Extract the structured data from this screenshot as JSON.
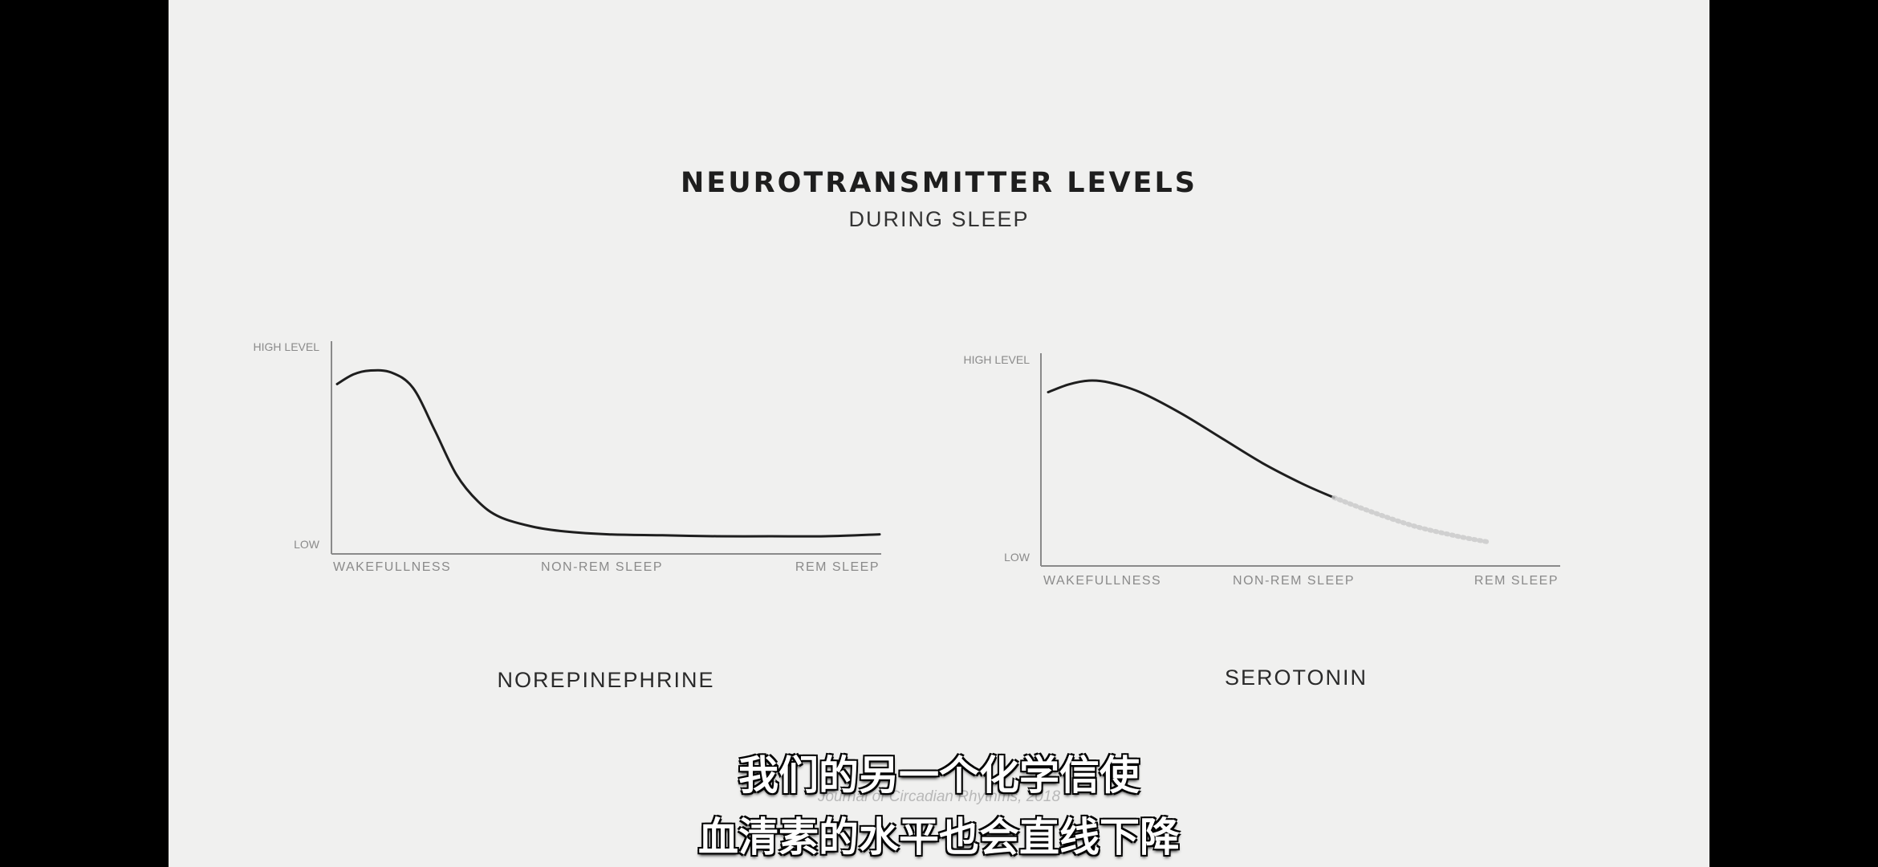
{
  "title": "NEUROTRANSMITTER LEVELS",
  "subtitle": "DURING SLEEP",
  "citation": "Journal of Circadian Rhythms, 2018",
  "captions": {
    "line1": "我们的另一个化学信使",
    "line2": "血清素的水平也会直线下降"
  },
  "chart_data": [
    {
      "type": "line",
      "title": "NOREPINEPHRINE",
      "ylabel_high": "HIGH LEVEL",
      "ylabel_low": "LOW",
      "x_ticks": [
        "WAKEFULLNESS",
        "NON-REM SLEEP",
        "REM SLEEP"
      ],
      "x": [
        0,
        0.03,
        0.06,
        0.1,
        0.14,
        0.18,
        0.22,
        0.26,
        0.3,
        0.36,
        0.42,
        0.5,
        0.6,
        0.7,
        0.8,
        0.9,
        1.0
      ],
      "y": [
        0.84,
        0.89,
        0.91,
        0.9,
        0.82,
        0.6,
        0.37,
        0.23,
        0.15,
        0.1,
        0.075,
        0.06,
        0.055,
        0.05,
        0.05,
        0.05,
        0.06
      ],
      "ylim": [
        0,
        1
      ],
      "grid": false
    },
    {
      "type": "line",
      "title": "SEROTONIN",
      "ylabel_high": "HIGH LEVEL",
      "ylabel_low": "LOW",
      "x_ticks": [
        "WAKEFULLNESS",
        "NON-REM SLEEP",
        "REM SLEEP"
      ],
      "x": [
        0,
        0.04,
        0.08,
        0.12,
        0.18,
        0.26,
        0.34,
        0.42,
        0.5,
        0.56
      ],
      "y": [
        0.86,
        0.9,
        0.92,
        0.91,
        0.86,
        0.75,
        0.62,
        0.49,
        0.38,
        0.31
      ],
      "faded_x": [
        0.56,
        0.64,
        0.72,
        0.8,
        0.86
      ],
      "faded_y": [
        0.31,
        0.23,
        0.16,
        0.11,
        0.08
      ],
      "ylim": [
        0,
        1
      ],
      "grid": false
    }
  ]
}
